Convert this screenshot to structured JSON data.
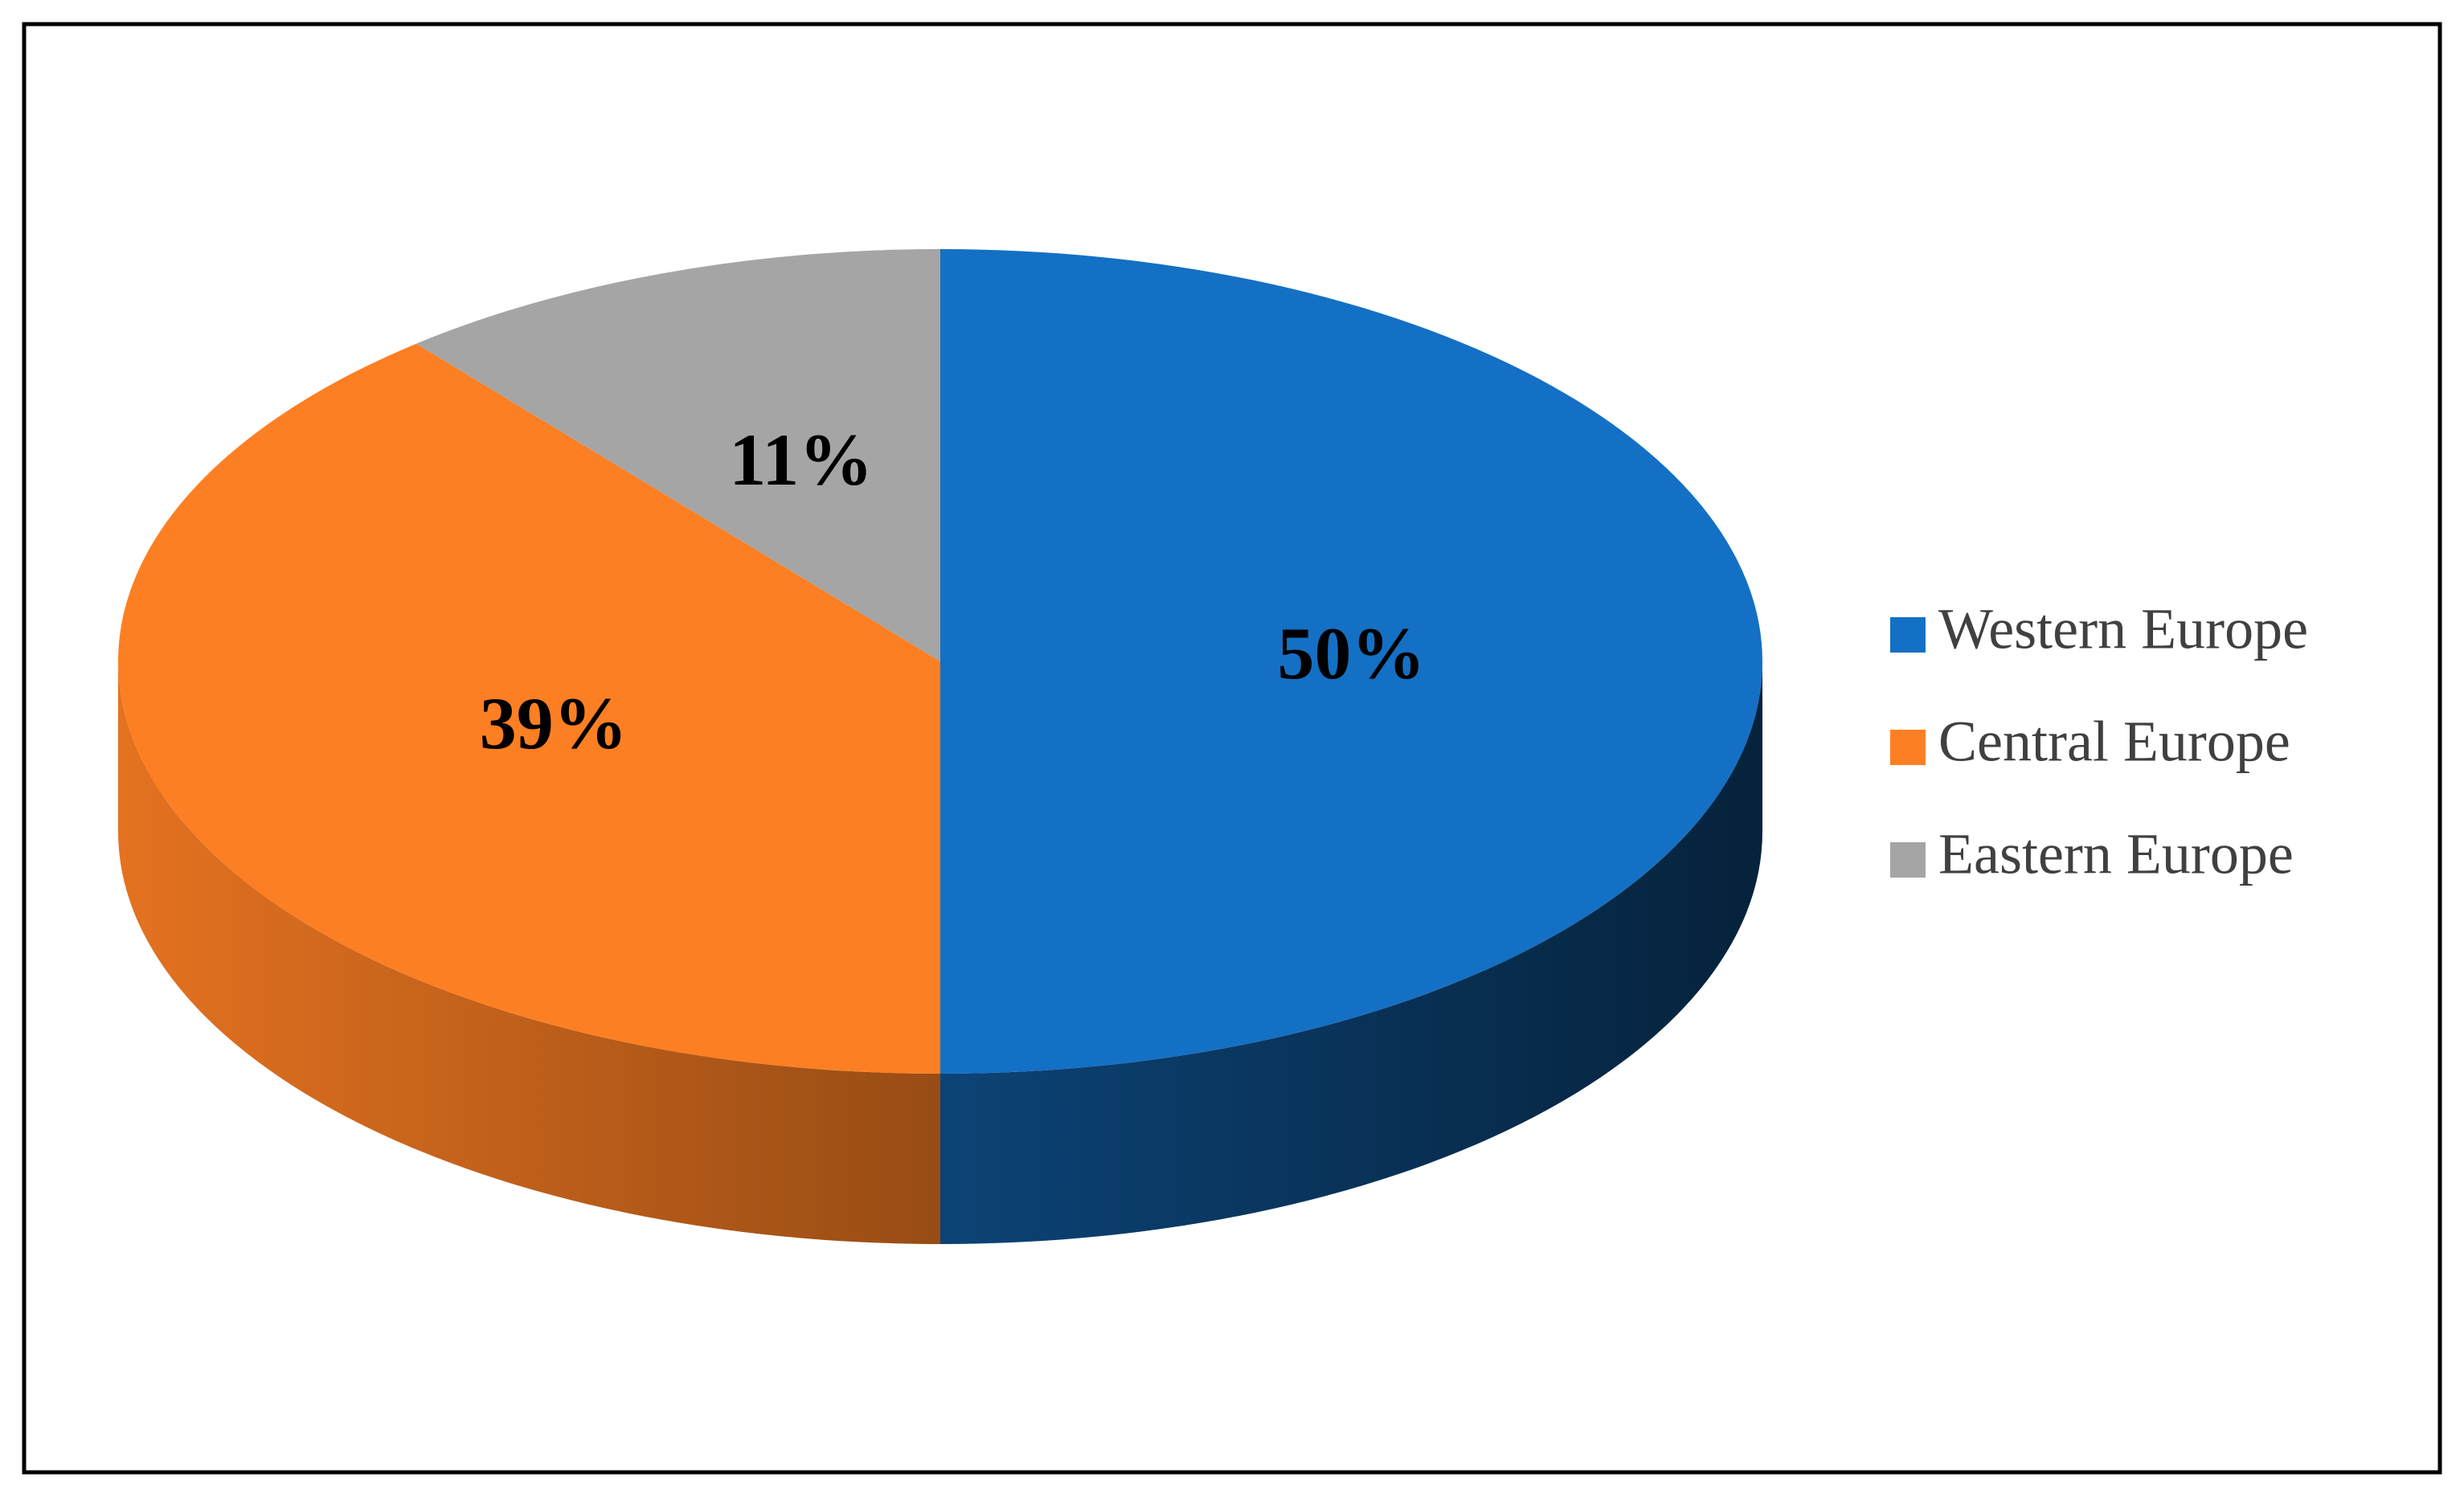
{
  "chart_data": {
    "type": "pie",
    "categories": [
      "Western Europe",
      "Central Europe",
      "Eastern Europe"
    ],
    "values": [
      50,
      39,
      11
    ],
    "value_labels": [
      "50%",
      "39%",
      "11%"
    ],
    "colors": [
      "#1470c4",
      "#fd7f23",
      "#a5a5a5"
    ],
    "legend": "right"
  }
}
